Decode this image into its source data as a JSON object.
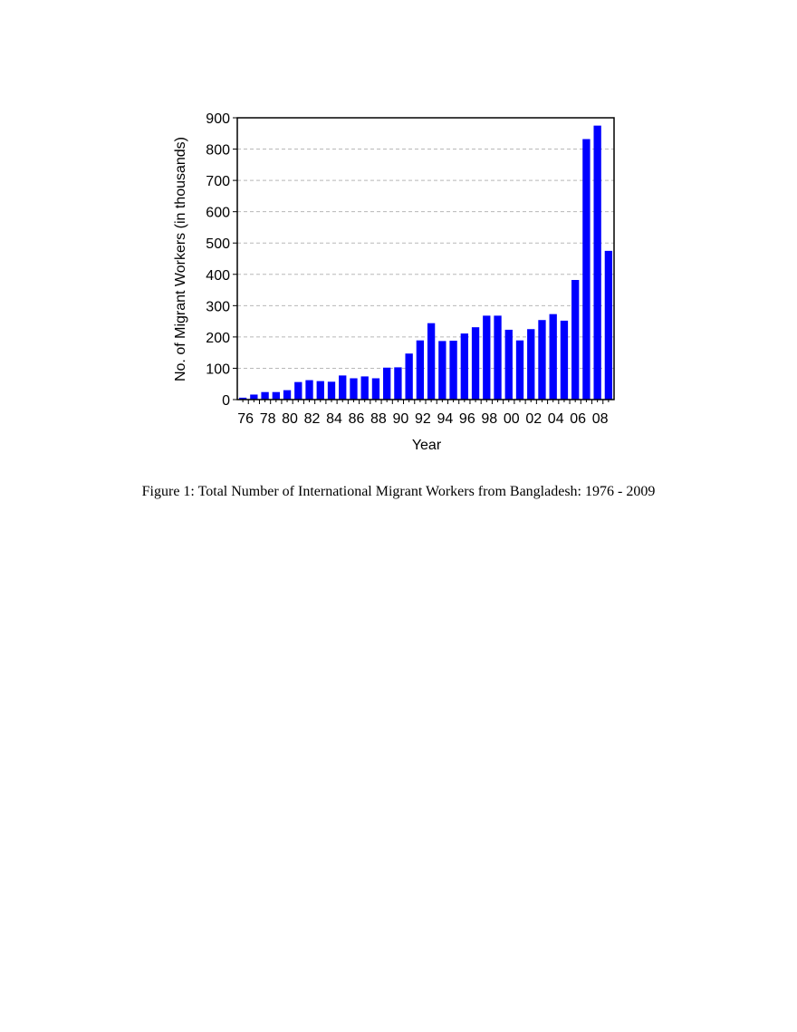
{
  "caption": "Figure 1: Total Number of International Migrant Workers from Bangladesh: 1976 - 2009",
  "chart_data": {
    "type": "bar",
    "title": "",
    "xlabel": "Year",
    "ylabel": "No. of Migrant Workers (in thousands)",
    "ylim": [
      0,
      900
    ],
    "yticks": [
      0,
      100,
      200,
      300,
      400,
      500,
      600,
      700,
      800,
      900
    ],
    "grid": "horizontal dashed",
    "bar_color": "#0000ff",
    "categories": [
      "76",
      "77",
      "78",
      "79",
      "80",
      "81",
      "82",
      "83",
      "84",
      "85",
      "86",
      "87",
      "88",
      "89",
      "90",
      "91",
      "92",
      "93",
      "94",
      "95",
      "96",
      "97",
      "98",
      "99",
      "00",
      "01",
      "02",
      "03",
      "04",
      "05",
      "06",
      "07",
      "08",
      "09"
    ],
    "x_tick_labels": [
      "76",
      "78",
      "80",
      "82",
      "84",
      "86",
      "88",
      "90",
      "92",
      "94",
      "96",
      "98",
      "00",
      "02",
      "04",
      "06",
      "08"
    ],
    "values": [
      6,
      16,
      24,
      24,
      30,
      56,
      62,
      59,
      57,
      77,
      68,
      74,
      68,
      102,
      103,
      147,
      189,
      244,
      187,
      188,
      211,
      231,
      268,
      268,
      223,
      189,
      225,
      254,
      273,
      252,
      382,
      832,
      875,
      475
    ]
  }
}
